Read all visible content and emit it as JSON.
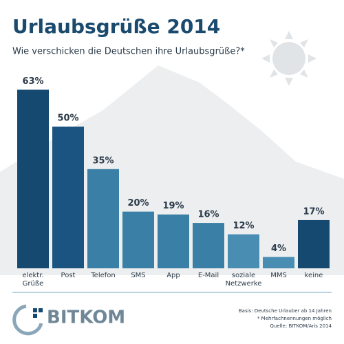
{
  "chart_data": {
    "type": "bar",
    "title": "Urlaubsgrüße 2014",
    "subtitle": "Wie verschicken die Deutschen ihre Urlaubsgrüße?*",
    "categories": [
      "elektr. Grüße",
      "Post",
      "Telefon",
      "SMS",
      "App",
      "E-Mail",
      "soziale Netzwerke",
      "MMS",
      "keine"
    ],
    "values": [
      63,
      50,
      35,
      20,
      19,
      16,
      12,
      4,
      17
    ],
    "value_labels": [
      "63%",
      "50%",
      "35%",
      "20%",
      "19%",
      "16%",
      "12%",
      "4%",
      "17%"
    ],
    "colors": [
      "#16496f",
      "#1b5480",
      "#3a7fa6",
      "#3a7fa6",
      "#3a7fa6",
      "#3a7fa6",
      "#4a8db3",
      "#4a8db3",
      "#16496f"
    ]
  },
  "footer": {
    "logo": "BITKOM",
    "notes": [
      "Basis: Deutsche Urlauber ab 14 Jahren",
      "* Mehrfachnennungen möglich",
      "Quelle: BITKOM/Aris 2014"
    ]
  }
}
